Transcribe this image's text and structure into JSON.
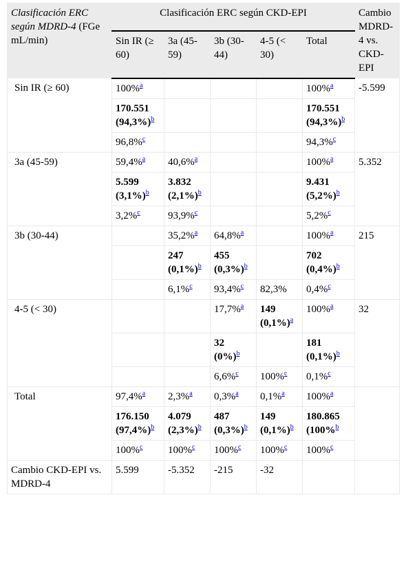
{
  "header": {
    "row_label_italic": "Clasificación ERC según MDRD-4",
    "row_label_rest": " (FGe mL/min)",
    "group": "Clasificación ERC según CKD-EPI",
    "change": "Cambio MDRD-4 vs. CKD-EPI",
    "columns": [
      "Sin IR (≥ 60)",
      "3a (45-59)",
      "3b (30-44)",
      "4-5 (< 30)",
      "Total"
    ]
  },
  "sup": {
    "a": "a",
    "b": "b",
    "c": "c"
  },
  "rows": [
    {
      "label": "Sin IR (≥ 60)",
      "change": "-5.599",
      "pct_a": [
        "100%",
        "",
        "",
        "",
        "100%"
      ],
      "count": [
        [
          "170.551",
          "(94,3%)"
        ],
        [
          "",
          ""
        ],
        [
          "",
          ""
        ],
        [
          "",
          ""
        ],
        [
          "170.551",
          "(94,3%)"
        ]
      ],
      "pct_c": [
        "96,8%",
        "",
        "",
        "",
        "94,3%"
      ]
    },
    {
      "label": "3a (45-59)",
      "change": "5.352",
      "pct_a": [
        "59,4%",
        "40,6%",
        "",
        "",
        "100%"
      ],
      "count": [
        [
          "5.599",
          "(3,1%)"
        ],
        [
          "3.832",
          "(2,1%)"
        ],
        [
          "",
          ""
        ],
        [
          "",
          ""
        ],
        [
          "9.431",
          "(5,2%)"
        ]
      ],
      "pct_c": [
        "3,2%",
        "93,9%",
        "",
        "",
        "5,2%"
      ]
    },
    {
      "label": "3b (30-44)",
      "change": "215",
      "pct_a": [
        "",
        "35,2%",
        "64,8%",
        "",
        "100%"
      ],
      "count": [
        [
          "",
          ""
        ],
        [
          "247",
          "(0,1%)"
        ],
        [
          "455",
          "(0,3%)"
        ],
        [
          "",
          ""
        ],
        [
          "702",
          "(0,4%)"
        ]
      ],
      "pct_c": [
        "",
        "6,1%",
        "93,4%",
        "82,3%",
        "0,4%"
      ]
    },
    {
      "label": "4-5 (< 30)",
      "change": "32",
      "pct_a": [
        "",
        "",
        "17,7%",
        "",
        "100%"
      ],
      "bold_a": [
        "149",
        "(0,1%)"
      ],
      "count": [
        [
          "",
          ""
        ],
        [
          "",
          ""
        ],
        [
          "32",
          "(0%)"
        ],
        [
          "",
          ""
        ],
        [
          "181",
          "(0,1%)"
        ]
      ],
      "pct_c": [
        "",
        "",
        "6,6%",
        "100%",
        "0,1%"
      ]
    },
    {
      "label": "Total",
      "change": "",
      "pct_a": [
        "97,4%",
        "2,3%",
        "0,3%",
        "0,1%",
        "100%"
      ],
      "count": [
        [
          "176.150",
          "(97,4%)"
        ],
        [
          "4.079",
          "(2,3%)"
        ],
        [
          "487",
          "(0,3%)"
        ],
        [
          "149",
          "(0,1%)"
        ],
        [
          "180.865",
          "(100%"
        ]
      ],
      "pct_c": [
        "100%",
        "100%",
        "100%",
        "100%",
        "100%"
      ]
    }
  ],
  "footer": {
    "label": "Cambio CKD-EPI vs. MDRD-4",
    "values": [
      "5.599",
      "-5.352",
      "-215",
      "-32",
      ""
    ]
  }
}
